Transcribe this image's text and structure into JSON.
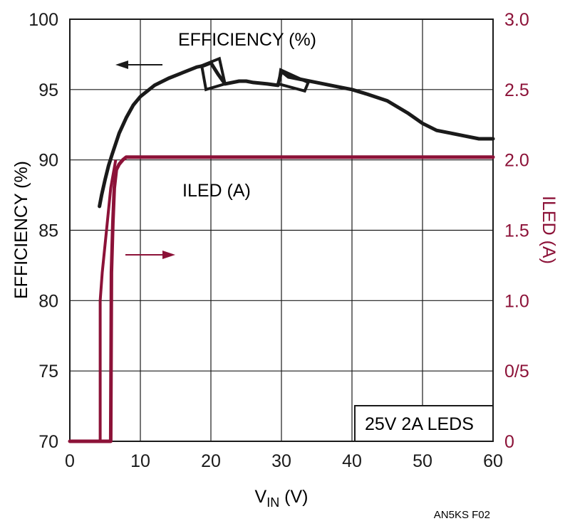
{
  "colors": {
    "efficiency": "#1a1a1a",
    "iled": "#8c1238",
    "grid": "#1a1a1a"
  },
  "chart_data": {
    "type": "line",
    "xlabel_main": "V",
    "xlabel_sub": "IN",
    "xlabel_unit": " (V)",
    "ylabel_left": "EFFICIENCY (%)",
    "ylabel_right": "ILED (A)",
    "xlim": [
      0,
      60
    ],
    "ylim_left": [
      70,
      100
    ],
    "ylim_right": [
      0,
      3.0
    ],
    "x_ticks": [
      "0",
      "10",
      "20",
      "30",
      "40",
      "50",
      "60"
    ],
    "y_left_ticks": [
      "70",
      "75",
      "80",
      "85",
      "90",
      "95",
      "100"
    ],
    "y_right_ticks": [
      "0",
      "0/5",
      "1.0",
      "1.5",
      "2.0",
      "2.5",
      "3.0"
    ],
    "grid": true,
    "annotation_efficiency": "EFFICIENCY (%)",
    "annotation_iled": "ILED (A)",
    "box_label": "25V 2A LEDS",
    "series": [
      {
        "name": "EFFICIENCY (%)",
        "axis": "left",
        "x": [
          4.2,
          4.5,
          5.0,
          5.5,
          6.0,
          7.0,
          8.0,
          9.0,
          10.0,
          11.0,
          12.0,
          14.0,
          16.0,
          18.0,
          19.0,
          20.0,
          21.0,
          22.0,
          24.0,
          25.0,
          26.0,
          28.0,
          29.5,
          30.0,
          31.0,
          33.0,
          35.0,
          38.0,
          40.0,
          42.0,
          45.0,
          48.0,
          50.0,
          52.0,
          54.0,
          56.0,
          58.0,
          60.0
        ],
        "y": [
          86.7,
          87.5,
          88.6,
          89.6,
          90.4,
          91.9,
          93.0,
          93.9,
          94.5,
          94.9,
          95.3,
          95.8,
          96.2,
          96.6,
          96.7,
          96.9,
          96.1,
          95.4,
          95.6,
          95.6,
          95.5,
          95.4,
          95.3,
          96.3,
          95.9,
          95.7,
          95.5,
          95.2,
          95.0,
          94.7,
          94.2,
          93.3,
          92.6,
          92.1,
          91.9,
          91.7,
          91.5,
          91.5
        ]
      },
      {
        "name": "ILED (A)",
        "axis": "right",
        "x": [
          0,
          5.8,
          5.9,
          6.1,
          6.3,
          6.6,
          7.0,
          7.5,
          8.0,
          10.0,
          20.0,
          30.0,
          40.0,
          50.0,
          60.0
        ],
        "y": [
          0,
          0,
          1.2,
          1.55,
          1.8,
          1.93,
          1.97,
          2.0,
          2.02,
          2.02,
          2.02,
          2.02,
          2.02,
          2.02,
          2.02
        ]
      }
    ],
    "figure_code": "AN5KS F02"
  }
}
